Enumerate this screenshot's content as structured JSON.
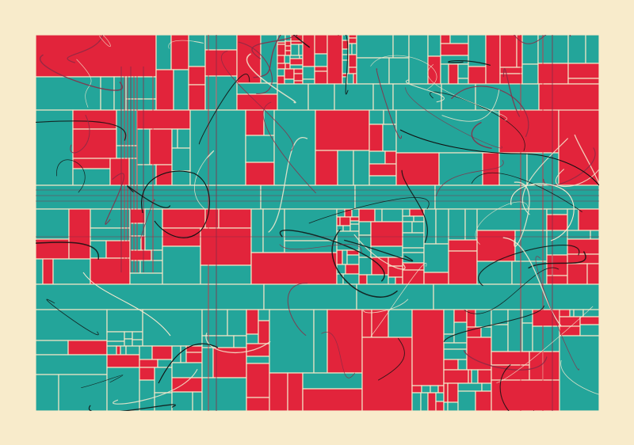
{
  "artwork": {
    "title": "",
    "palette": {
      "background": "#f8ebcb",
      "red": "#e2243b",
      "teal": "#23a59a",
      "grid_line": "#f3e6c7",
      "ink_dark": "#111111",
      "ink_light": "#f6ead0",
      "ink_maroon": "#8b2a45"
    }
  }
}
